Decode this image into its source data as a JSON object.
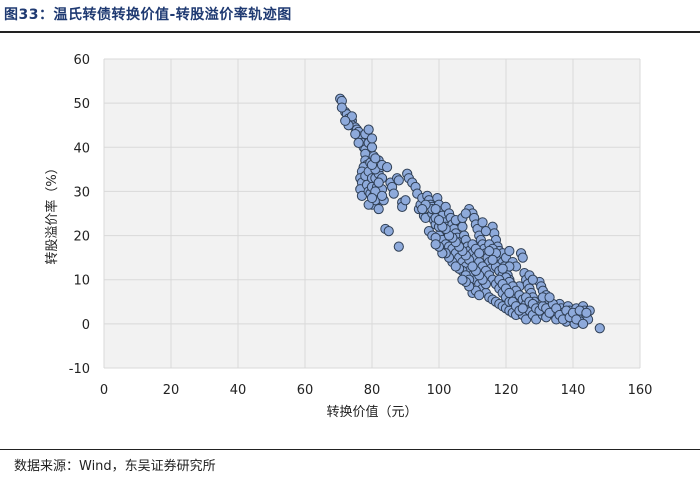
{
  "figure": {
    "title": "图33：温氏转债转换价值-转股溢价率轨迹图",
    "source": "数据来源：Wind，东吴证券研究所"
  },
  "colors": {
    "title": "#1f3a72",
    "point_fill": "#8eaadb",
    "point_stroke": "#2f3f55",
    "plot_bg": "#f2f2f2",
    "grid": "#d9d9d9"
  },
  "chart_data": {
    "type": "scatter",
    "title": "",
    "xlabel": "转换价值（元）",
    "ylabel": "转股溢价率（%）",
    "xlim": [
      0,
      160
    ],
    "ylim": [
      -10,
      60
    ],
    "xticks": [
      0,
      20,
      40,
      60,
      80,
      100,
      120,
      140,
      160
    ],
    "yticks": [
      -10,
      0,
      10,
      20,
      30,
      40,
      50,
      60
    ],
    "grid": true,
    "legend": "none",
    "series": [
      {
        "points": [
          [
            70.5,
            51
          ],
          [
            71,
            50.5
          ],
          [
            72,
            48
          ],
          [
            72.5,
            47.5
          ],
          [
            73,
            46.5
          ],
          [
            74,
            46
          ],
          [
            74,
            45
          ],
          [
            75,
            44.5
          ],
          [
            75.5,
            44
          ],
          [
            76,
            43.5
          ],
          [
            76,
            42.5
          ],
          [
            77,
            42
          ],
          [
            77,
            41
          ],
          [
            77.5,
            40
          ],
          [
            78,
            39.5
          ],
          [
            78,
            38.5
          ],
          [
            78,
            37
          ],
          [
            78.5,
            36
          ],
          [
            77.5,
            35.5
          ],
          [
            77,
            34.5
          ],
          [
            76.5,
            33
          ],
          [
            77,
            32
          ],
          [
            76.5,
            30.5
          ],
          [
            77,
            29
          ],
          [
            78,
            33.5
          ],
          [
            78.5,
            31.5
          ],
          [
            79,
            30
          ],
          [
            79.5,
            29.5
          ],
          [
            79,
            34.5
          ],
          [
            79.5,
            36.5
          ],
          [
            80,
            33
          ],
          [
            80,
            31
          ],
          [
            80.5,
            29
          ],
          [
            81,
            27.5
          ],
          [
            80,
            27
          ],
          [
            81,
            28
          ],
          [
            82,
            26
          ],
          [
            81.5,
            31
          ],
          [
            81,
            33
          ],
          [
            82,
            34
          ],
          [
            82.5,
            35.5
          ],
          [
            83,
            33
          ],
          [
            82,
            37
          ],
          [
            83,
            30.5
          ],
          [
            83.5,
            28
          ],
          [
            81,
            35
          ],
          [
            80,
            36
          ],
          [
            80.5,
            38
          ],
          [
            81,
            37.5
          ],
          [
            83,
            36
          ],
          [
            84.5,
            35.5
          ],
          [
            84,
            21.5
          ],
          [
            85,
            21
          ],
          [
            85.5,
            32
          ],
          [
            86,
            31
          ],
          [
            86.5,
            29.5
          ],
          [
            87.5,
            33
          ],
          [
            88,
            32.5
          ],
          [
            88,
            17.5
          ],
          [
            89,
            27.5
          ],
          [
            89,
            26.5
          ],
          [
            90,
            28
          ],
          [
            90.5,
            34
          ],
          [
            91,
            33
          ],
          [
            92,
            32
          ],
          [
            93,
            31
          ],
          [
            93.5,
            29.5
          ],
          [
            94,
            26
          ],
          [
            94.5,
            27
          ],
          [
            95,
            28.5
          ],
          [
            95.5,
            24.5
          ],
          [
            96,
            24
          ],
          [
            96.5,
            29
          ],
          [
            97,
            28
          ],
          [
            97.5,
            27
          ],
          [
            98,
            26.5
          ],
          [
            98,
            25
          ],
          [
            98.5,
            23.5
          ],
          [
            99,
            22.5
          ],
          [
            99.5,
            28.5
          ],
          [
            100,
            27
          ],
          [
            100.5,
            25.5
          ],
          [
            101,
            24.5
          ],
          [
            101.5,
            23
          ],
          [
            102,
            26.5
          ],
          [
            102,
            22
          ],
          [
            102.5,
            21
          ],
          [
            103,
            25
          ],
          [
            103.5,
            24
          ],
          [
            104,
            22.5
          ],
          [
            104.5,
            21.5
          ],
          [
            105,
            20.5
          ],
          [
            105.5,
            19.5
          ],
          [
            106,
            18.5
          ],
          [
            106.5,
            23
          ],
          [
            107,
            22
          ],
          [
            107.5,
            20
          ],
          [
            108,
            19
          ],
          [
            108.5,
            17.5
          ],
          [
            109,
            16.5
          ],
          [
            109,
            26
          ],
          [
            110,
            25
          ],
          [
            110.5,
            24
          ],
          [
            111,
            22.5
          ],
          [
            111.5,
            21.5
          ],
          [
            112,
            20
          ],
          [
            112.5,
            19
          ],
          [
            113,
            18
          ],
          [
            113.5,
            17
          ],
          [
            114,
            16
          ],
          [
            114.5,
            15
          ],
          [
            115,
            14
          ],
          [
            115.5,
            12.5
          ],
          [
            116,
            22
          ],
          [
            116.5,
            20.5
          ],
          [
            117,
            19
          ],
          [
            117.5,
            17.5
          ],
          [
            118,
            16.5
          ],
          [
            118.5,
            15
          ],
          [
            119,
            14
          ],
          [
            119.5,
            13
          ],
          [
            120,
            12
          ],
          [
            120.5,
            11
          ],
          [
            121,
            10
          ],
          [
            121.5,
            9
          ],
          [
            122,
            8
          ],
          [
            122.5,
            7
          ],
          [
            123,
            6
          ],
          [
            123.5,
            5
          ],
          [
            124,
            8.5
          ],
          [
            124.5,
            16
          ],
          [
            125,
            15
          ],
          [
            125.5,
            11.5
          ],
          [
            126,
            10
          ],
          [
            126.5,
            9
          ],
          [
            127,
            8
          ],
          [
            127.5,
            7
          ],
          [
            128,
            6
          ],
          [
            128.5,
            5
          ],
          [
            129,
            4
          ],
          [
            129.5,
            2.5
          ],
          [
            130,
            9.5
          ],
          [
            130.5,
            8.5
          ],
          [
            131,
            7.5
          ],
          [
            132,
            6.5
          ],
          [
            133,
            5
          ],
          [
            133.5,
            4
          ],
          [
            134,
            3
          ],
          [
            134.5,
            2
          ],
          [
            135,
            1
          ],
          [
            136,
            4.5
          ],
          [
            136.5,
            3.5
          ],
          [
            137,
            2.5
          ],
          [
            137.5,
            1.5
          ],
          [
            138,
            0.5
          ],
          [
            138.5,
            4
          ],
          [
            139,
            3
          ],
          [
            139.5,
            2
          ],
          [
            140,
            1
          ],
          [
            140.5,
            0
          ],
          [
            141,
            3.5
          ],
          [
            141.5,
            2.5
          ],
          [
            142,
            1.5
          ],
          [
            142.5,
            0.5
          ],
          [
            143,
            4
          ],
          [
            143.5,
            3
          ],
          [
            144,
            2
          ],
          [
            144.5,
            1
          ],
          [
            145,
            3
          ],
          [
            148,
            -1
          ],
          [
            100,
            20
          ],
          [
            101,
            19
          ],
          [
            102,
            18
          ],
          [
            103,
            17.5
          ],
          [
            104,
            17
          ],
          [
            105,
            16
          ],
          [
            106,
            15
          ],
          [
            107,
            14
          ],
          [
            108,
            13
          ],
          [
            109,
            12
          ],
          [
            110,
            11
          ],
          [
            111,
            10
          ],
          [
            112,
            9
          ],
          [
            113,
            8
          ],
          [
            114,
            7
          ],
          [
            115,
            6
          ],
          [
            116,
            5.5
          ],
          [
            117,
            5
          ],
          [
            118,
            4.5
          ],
          [
            119,
            4
          ],
          [
            120,
            3.5
          ],
          [
            121,
            3
          ],
          [
            122,
            2.5
          ],
          [
            123,
            2
          ],
          [
            97,
            21
          ],
          [
            98,
            20
          ],
          [
            99,
            19.5
          ],
          [
            105,
            23.5
          ],
          [
            107,
            24
          ],
          [
            108,
            25
          ],
          [
            110,
            16
          ],
          [
            111,
            15
          ],
          [
            112,
            14
          ],
          [
            113,
            13
          ],
          [
            114,
            12
          ],
          [
            115,
            11
          ],
          [
            116,
            10
          ],
          [
            117,
            9
          ],
          [
            118,
            8
          ],
          [
            119,
            7
          ],
          [
            120,
            6
          ],
          [
            121,
            5
          ],
          [
            110,
            7
          ],
          [
            111,
            7.5
          ],
          [
            112,
            6.5
          ],
          [
            125,
            2
          ],
          [
            126,
            1
          ],
          [
            127,
            3
          ],
          [
            128,
            2
          ],
          [
            129,
            1
          ],
          [
            131,
            2
          ],
          [
            132,
            1.5
          ],
          [
            107,
            12
          ],
          [
            108,
            11
          ],
          [
            109,
            10
          ],
          [
            104,
            14
          ],
          [
            103,
            15
          ],
          [
            102,
            16
          ],
          [
            100,
            22
          ],
          [
            99,
            24
          ],
          [
            98,
            26
          ],
          [
            96,
            27
          ],
          [
            95,
            26
          ],
          [
            113,
            23
          ],
          [
            114,
            21
          ],
          [
            115,
            18
          ],
          [
            116,
            17
          ],
          [
            117,
            13
          ],
          [
            118,
            12
          ],
          [
            119,
            11
          ],
          [
            120,
            10.5
          ],
          [
            121,
            9.5
          ],
          [
            122,
            8.5
          ],
          [
            123,
            7.5
          ],
          [
            124,
            6.5
          ],
          [
            125,
            5.5
          ],
          [
            126,
            4.5
          ],
          [
            127,
            11
          ],
          [
            128,
            10
          ],
          [
            106,
            12.5
          ],
          [
            105,
            13
          ],
          [
            109,
            14.5
          ],
          [
            108,
            15.5
          ],
          [
            107,
            16.5
          ],
          [
            106,
            17.5
          ],
          [
            105,
            18.5
          ],
          [
            104,
            19.5
          ],
          [
            103,
            20
          ],
          [
            102,
            21.5
          ],
          [
            101,
            22
          ],
          [
            100,
            23.5
          ],
          [
            99,
            26
          ],
          [
            119,
            16
          ],
          [
            120,
            15
          ],
          [
            121,
            16.5
          ],
          [
            122,
            14
          ],
          [
            123,
            13
          ],
          [
            117,
            16
          ],
          [
            116,
            14.5
          ],
          [
            115,
            16.5
          ],
          [
            118,
            10
          ],
          [
            119,
            9
          ],
          [
            120,
            8
          ],
          [
            121,
            7
          ],
          [
            122,
            5
          ],
          [
            123,
            4
          ],
          [
            124,
            3
          ],
          [
            125,
            3.5
          ],
          [
            126,
            6
          ],
          [
            127,
            5
          ],
          [
            128,
            4.5
          ],
          [
            129,
            3.5
          ],
          [
            130,
            3
          ],
          [
            131,
            4
          ],
          [
            132,
            3.5
          ],
          [
            133,
            2.5
          ],
          [
            134,
            4.5
          ],
          [
            135,
            3.5
          ],
          [
            136,
            2
          ],
          [
            137,
            1
          ],
          [
            138,
            3
          ],
          [
            139,
            1.5
          ],
          [
            140,
            2.5
          ],
          [
            141,
            1
          ],
          [
            142,
            3
          ],
          [
            143,
            0
          ],
          [
            144,
            2.5
          ],
          [
            131,
            6
          ],
          [
            133,
            6
          ],
          [
            114,
            9
          ],
          [
            113,
            10
          ],
          [
            112,
            11
          ],
          [
            111,
            12
          ],
          [
            110,
            13
          ],
          [
            109,
            8.5
          ],
          [
            108,
            9.5
          ],
          [
            107,
            10
          ],
          [
            121,
            13
          ],
          [
            119,
            12.5
          ],
          [
            110,
            18
          ],
          [
            111,
            17
          ],
          [
            112,
            16
          ],
          [
            101,
            16
          ],
          [
            100,
            17.5
          ],
          [
            99,
            18
          ],
          [
            79,
            41
          ],
          [
            80,
            40
          ],
          [
            76,
            41
          ],
          [
            75,
            43
          ],
          [
            73,
            45
          ],
          [
            74,
            47
          ],
          [
            72,
            46
          ],
          [
            71,
            49
          ],
          [
            78,
            43
          ],
          [
            79,
            44
          ],
          [
            80,
            42
          ],
          [
            81,
            30
          ],
          [
            82,
            32
          ],
          [
            83,
            29
          ],
          [
            79,
            27
          ],
          [
            80,
            28.5
          ]
        ]
      }
    ]
  }
}
